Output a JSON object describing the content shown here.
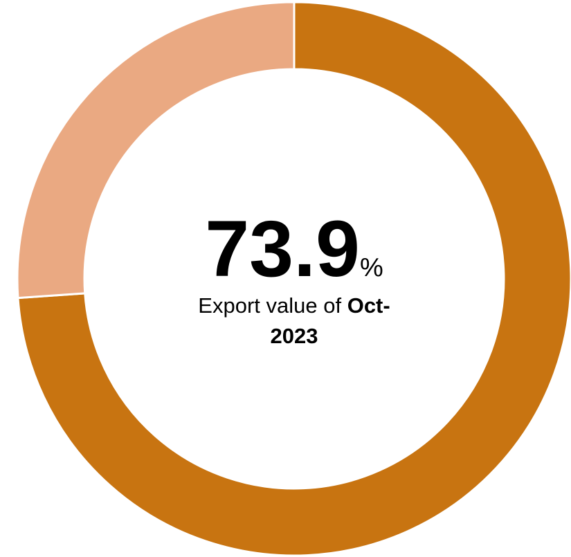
{
  "chart_data": {
    "type": "donut",
    "values": [
      73.9,
      26.1
    ],
    "colors": [
      "#c87411",
      "#eaa982"
    ],
    "center_unit": "%",
    "center_text": "Export value of",
    "center_period": "Oct-2023"
  }
}
